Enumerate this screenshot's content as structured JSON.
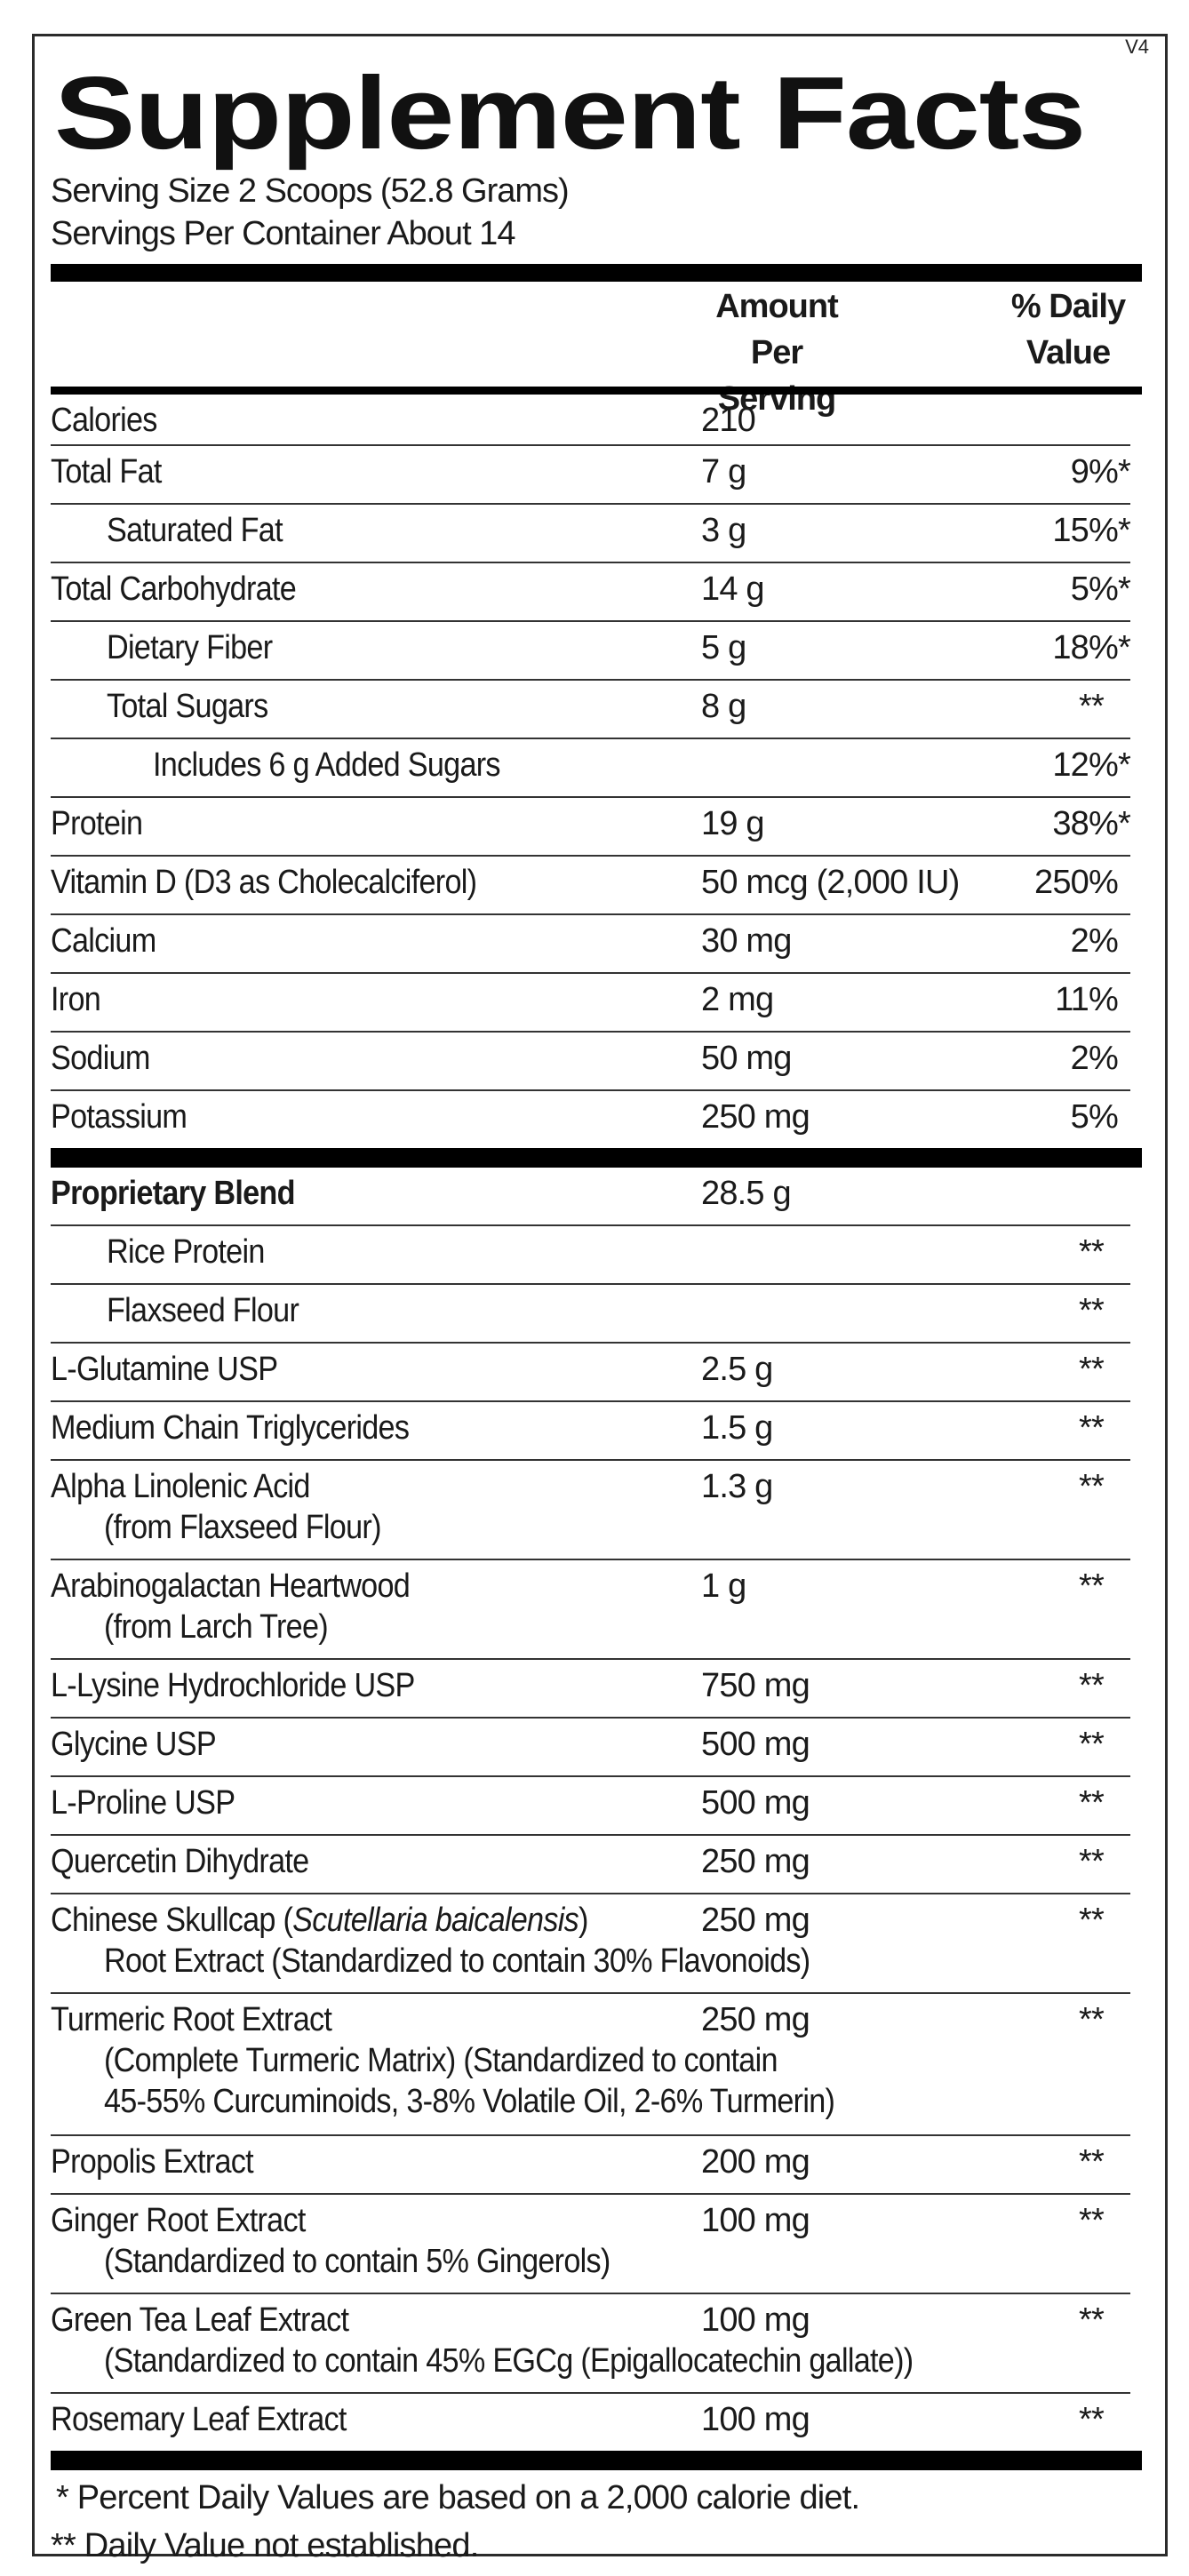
{
  "label": {
    "title": "Supplement Facts",
    "version": "V4",
    "serving_size": "Serving Size 2 Scoops (52.8 Grams)",
    "servings_per_container": "Servings Per Container  About 14",
    "header_amount_line1": "Amount Per",
    "header_amount_line2": "Serving",
    "header_dv_line1": "% Daily",
    "header_dv_line2": "Value"
  },
  "nutrients": [
    {
      "name": "Calories",
      "amount": "210",
      "dv": "",
      "indent": 0,
      "short": true
    },
    {
      "name": "Total Fat",
      "amount": "7 g",
      "dv": "9%*",
      "indent": 0
    },
    {
      "name": "Saturated Fat",
      "amount": "3 g",
      "dv": "15%*",
      "indent": 1
    },
    {
      "name": "Total Carbohydrate",
      "amount": "14 g",
      "dv": "5%*",
      "indent": 0
    },
    {
      "name": "Dietary Fiber",
      "amount": "5 g",
      "dv": "18%*",
      "indent": 1
    },
    {
      "name": "Total Sugars",
      "amount": "8 g",
      "dv": "**",
      "indent": 1
    },
    {
      "name": "Includes 6 g Added Sugars",
      "amount": "",
      "dv": "12%*",
      "indent": 2
    },
    {
      "name": "Protein",
      "amount": "19 g",
      "dv": "38%*",
      "indent": 0
    },
    {
      "name": "Vitamin D (D3 as Cholecalciferol)",
      "amount": "50 mcg (2,000 IU)",
      "dv": "250%",
      "indent": 0
    },
    {
      "name": "Calcium",
      "amount": "30 mg",
      "dv": "2%",
      "indent": 0
    },
    {
      "name": "Iron",
      "amount": "2 mg",
      "dv": "11%",
      "indent": 0
    },
    {
      "name": "Sodium",
      "amount": "50 mg",
      "dv": "2%",
      "indent": 0
    },
    {
      "name": "Potassium",
      "amount": "250 mg",
      "dv": "5%",
      "indent": 0,
      "last": true
    }
  ],
  "blend": [
    {
      "name": "Proprietary Blend",
      "amount": "28.5 g",
      "dv": "",
      "indent": 0,
      "bold": true
    },
    {
      "name": "Rice Protein",
      "amount": "",
      "dv": "**",
      "indent": 1
    },
    {
      "name": "Flaxseed Flour",
      "amount": "",
      "dv": "**",
      "indent": 1
    },
    {
      "name": "L-Glutamine USP",
      "amount": "2.5 g",
      "dv": "**",
      "indent": 0
    },
    {
      "name": "Medium Chain Triglycerides",
      "amount": "1.5 g",
      "dv": "**",
      "indent": 0
    },
    {
      "name": "Alpha Linolenic Acid",
      "sub": [
        "(from Flaxseed Flour)"
      ],
      "amount": "1.3 g",
      "dv": "**",
      "indent": 0
    },
    {
      "name": "Arabinogalactan Heartwood",
      "sub": [
        "(from Larch Tree)"
      ],
      "amount": "1 g",
      "dv": "**",
      "indent": 0
    },
    {
      "name": "L-Lysine Hydrochloride USP",
      "amount": "750 mg",
      "dv": "**",
      "indent": 0
    },
    {
      "name": "Glycine USP",
      "amount": "500 mg",
      "dv": "**",
      "indent": 0
    },
    {
      "name": "L-Proline USP",
      "amount": "500 mg",
      "dv": "**",
      "indent": 0
    },
    {
      "name": "Quercetin Dihydrate",
      "amount": "250 mg",
      "dv": "**",
      "indent": 0
    },
    {
      "name": "Chinese Skullcap (",
      "name_italic": "Scutellaria baicalensis",
      "name_after": ")",
      "sub": [
        "Root Extract (Standardized to contain 30% Flavonoids)"
      ],
      "amount": "250 mg",
      "dv": "**",
      "indent": 0
    },
    {
      "name": "Turmeric Root Extract",
      "sub": [
        "(Complete Turmeric Matrix) (Standardized to contain",
        "45-55% Curcuminoids, 3-8% Volatile Oil, 2-6% Turmerin)"
      ],
      "amount": "250 mg",
      "dv": "**",
      "indent": 0
    },
    {
      "name": "Propolis Extract",
      "amount": "200 mg",
      "dv": "**",
      "indent": 0
    },
    {
      "name": "Ginger Root Extract",
      "sub": [
        "(Standardized to contain 5% Gingerols)"
      ],
      "amount": "100 mg",
      "dv": "**",
      "indent": 0
    },
    {
      "name": "Green Tea Leaf Extract",
      "sub": [
        "(Standardized to contain 45% EGCg (Epigallocatechin gallate))"
      ],
      "amount": "100 mg",
      "dv": "**",
      "indent": 0
    },
    {
      "name": "Rosemary Leaf Extract",
      "amount": "100 mg",
      "dv": "**",
      "indent": 0,
      "last": true
    }
  ],
  "footnotes": [
    "* Percent Daily Values are based on a 2,000 calorie diet.",
    "** Daily Value not established."
  ]
}
